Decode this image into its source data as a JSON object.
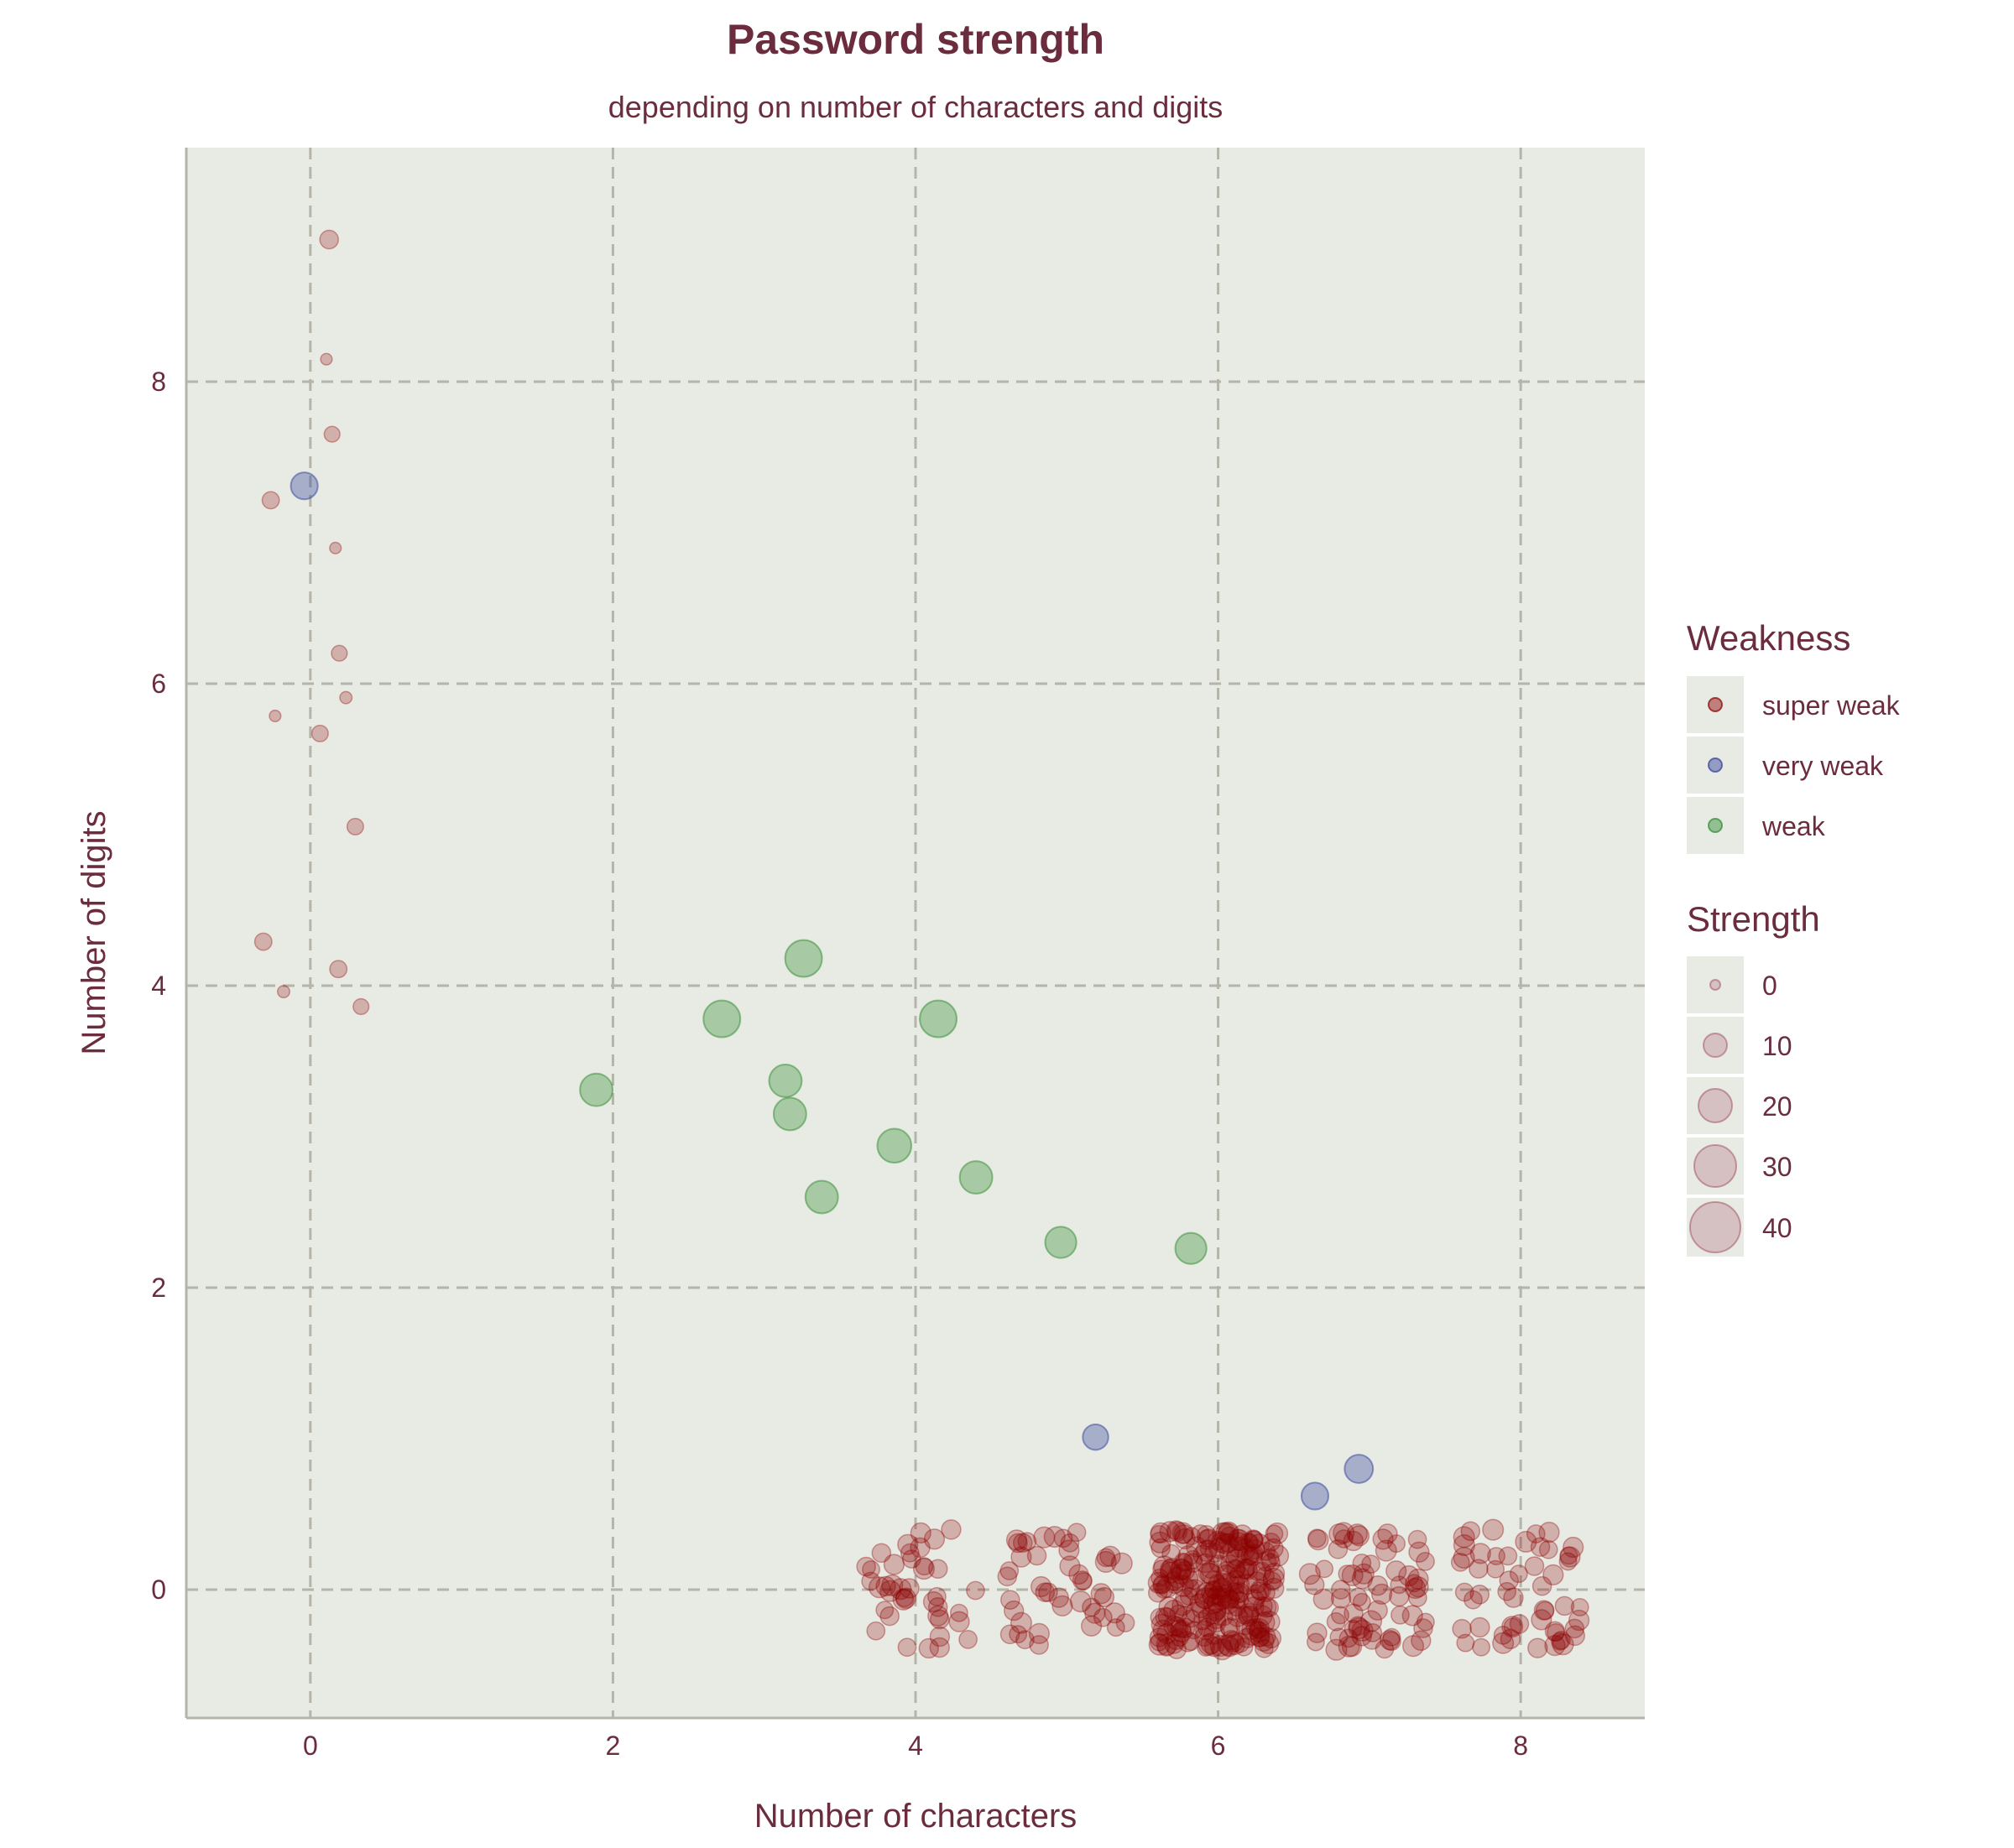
{
  "colors": {
    "panel_bg": "#e8eae4",
    "grid": "#b4b4a8",
    "axis": "#b4b4a8",
    "text": "#6b2d3e",
    "super_weak": "#8b0000",
    "very_weak": "#2f3f9a",
    "weak": "#2e8b2e",
    "strength_key": "#a0475c"
  },
  "chart_data": {
    "type": "scatter",
    "title": "Password strength",
    "subtitle": "depending on number of characters and digits",
    "xlabel": "Number of characters",
    "ylabel": "Number of digits",
    "xlim": [
      -0.82,
      8.82
    ],
    "ylim": [
      -0.85,
      9.55
    ],
    "xticks": [
      "0",
      "2",
      "4",
      "6",
      "8"
    ],
    "yticks": [
      "0",
      "2",
      "4",
      "6",
      "8"
    ],
    "grid": true,
    "legend_placement": "right",
    "weakness_legend": {
      "title": "Weakness",
      "entries": [
        "super weak",
        "very weak",
        "weak"
      ]
    },
    "strength_legend": {
      "title": "Strength",
      "entries": [
        "0",
        "10",
        "20",
        "30",
        "40"
      ]
    },
    "series": [
      {
        "name": "very weak",
        "points": [
          [
            -0.04,
            7.31,
            24
          ],
          [
            5.19,
            1.01,
            22
          ],
          [
            6.64,
            0.62,
            24
          ],
          [
            6.93,
            0.8,
            26
          ]
        ]
      },
      {
        "name": "weak",
        "points": [
          [
            1.89,
            3.31,
            32
          ],
          [
            2.72,
            3.78,
            38
          ],
          [
            3.14,
            3.37,
            32
          ],
          [
            3.17,
            3.15,
            32
          ],
          [
            3.26,
            4.18,
            38
          ],
          [
            3.38,
            2.6,
            32
          ],
          [
            3.86,
            2.94,
            34
          ],
          [
            4.15,
            3.78,
            38
          ],
          [
            4.4,
            2.73,
            32
          ],
          [
            4.96,
            2.3,
            30
          ],
          [
            5.82,
            2.26,
            30
          ]
        ]
      }
    ]
  }
}
